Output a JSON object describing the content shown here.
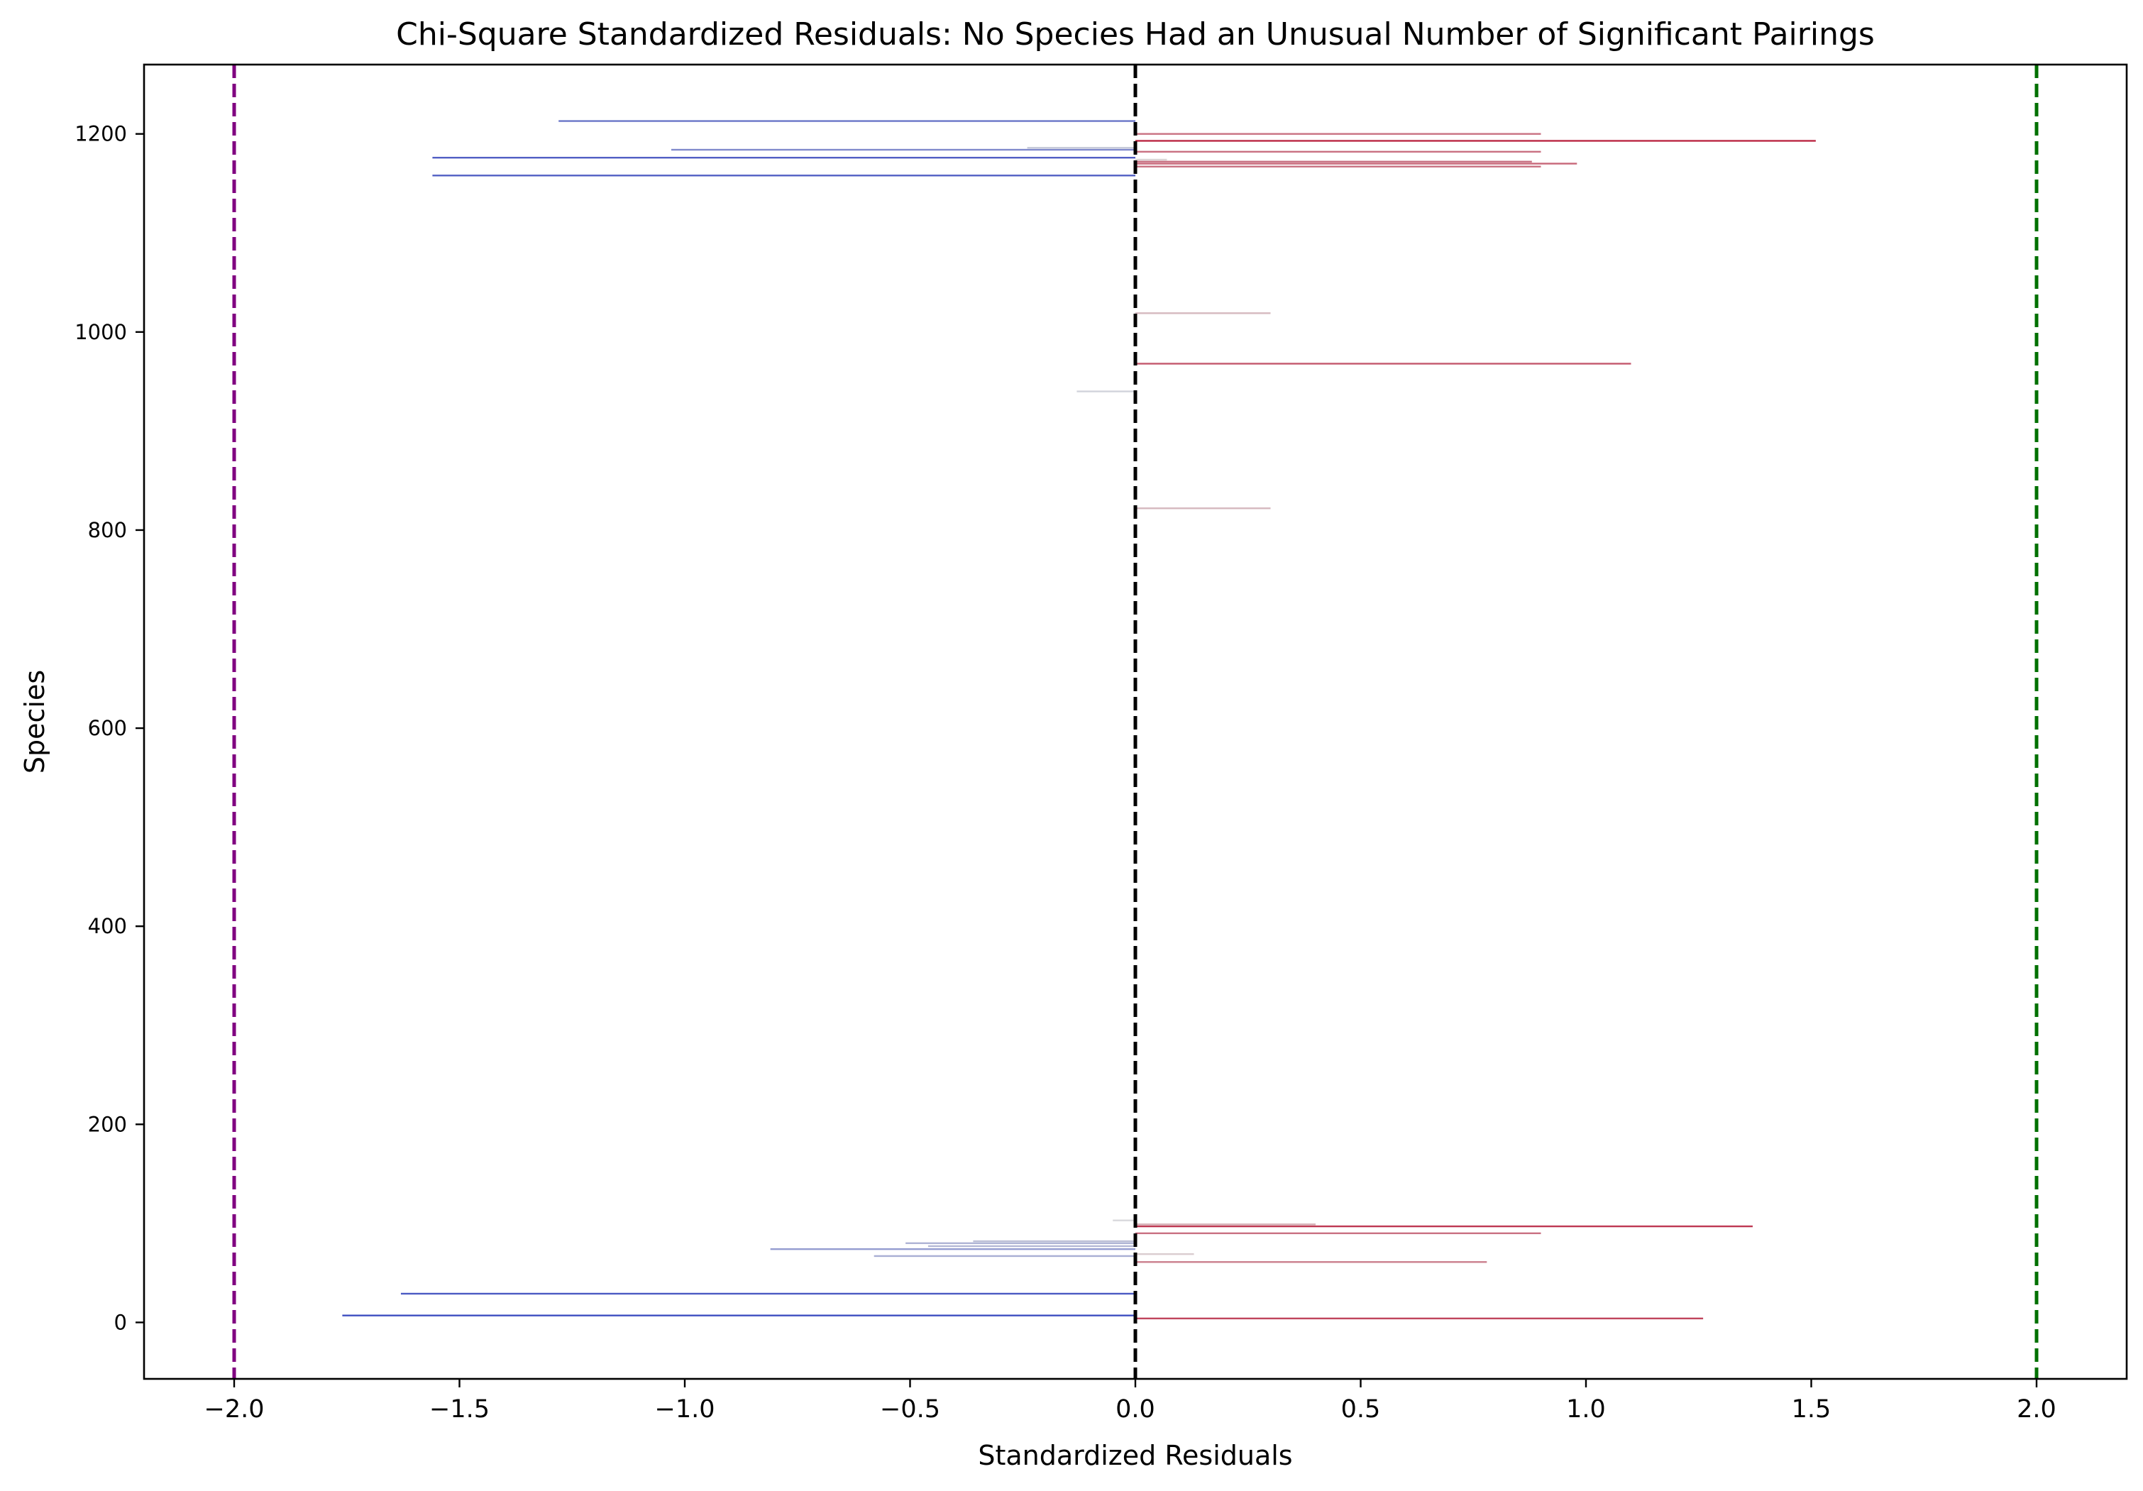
{
  "chart_data": {
    "type": "bar",
    "orientation": "horizontal",
    "title": "Chi-Square Standardized Residuals: No Species Had an Unusual Number of Significant Pairings",
    "xlabel": "Standardized Residuals",
    "ylabel": "Species",
    "xlim": [
      -2.2,
      2.2
    ],
    "ylim": [
      -57,
      1270
    ],
    "xticks": [
      -2.0,
      -1.5,
      -1.0,
      -0.5,
      0.0,
      0.5,
      1.0,
      1.5,
      2.0
    ],
    "xtick_labels": [
      "−2.0",
      "−1.5",
      "−1.0",
      "−0.5",
      "0.0",
      "0.5",
      "1.0",
      "1.5",
      "2.0"
    ],
    "yticks": [
      0,
      200,
      400,
      600,
      800,
      1000,
      1200
    ],
    "ytick_labels": [
      "0",
      "200",
      "400",
      "600",
      "800",
      "1000",
      "1200"
    ],
    "grid": false,
    "legend": "none",
    "colormap": "coolwarm (blue for negative, red for positive residuals)",
    "reference_lines": [
      {
        "x": -2.0,
        "color": "#800080",
        "style": "dashed"
      },
      {
        "x": 0.0,
        "color": "#000000",
        "style": "dashed"
      },
      {
        "x": 2.0,
        "color": "#007000",
        "style": "dashed"
      }
    ],
    "bars": [
      {
        "y": 7,
        "value": -1.76
      },
      {
        "y": 4,
        "value": 1.26
      },
      {
        "y": 29,
        "value": -1.63
      },
      {
        "y": 61,
        "value": 0.78
      },
      {
        "y": 67,
        "value": -0.58
      },
      {
        "y": 69,
        "value": 0.13
      },
      {
        "y": 74,
        "value": -0.81
      },
      {
        "y": 77,
        "value": -0.46
      },
      {
        "y": 80,
        "value": -0.51
      },
      {
        "y": 82,
        "value": -0.36
      },
      {
        "y": 90,
        "value": 0.9
      },
      {
        "y": 97,
        "value": 1.37
      },
      {
        "y": 99,
        "value": 0.4
      },
      {
        "y": 103,
        "value": -0.05
      },
      {
        "y": 822,
        "value": 0.3
      },
      {
        "y": 940,
        "value": -0.13
      },
      {
        "y": 968,
        "value": 1.1
      },
      {
        "y": 1019,
        "value": 0.3
      },
      {
        "y": 1158,
        "value": -1.56
      },
      {
        "y": 1167,
        "value": 0.9
      },
      {
        "y": 1170,
        "value": 0.98
      },
      {
        "y": 1172,
        "value": 0.88
      },
      {
        "y": 1174,
        "value": 0.07
      },
      {
        "y": 1176,
        "value": -1.56
      },
      {
        "y": 1182,
        "value": 0.9
      },
      {
        "y": 1184,
        "value": -1.03
      },
      {
        "y": 1186,
        "value": -0.24
      },
      {
        "y": 1193,
        "value": 1.51
      },
      {
        "y": 1200,
        "value": 0.9
      },
      {
        "y": 1213,
        "value": -1.28
      }
    ]
  }
}
